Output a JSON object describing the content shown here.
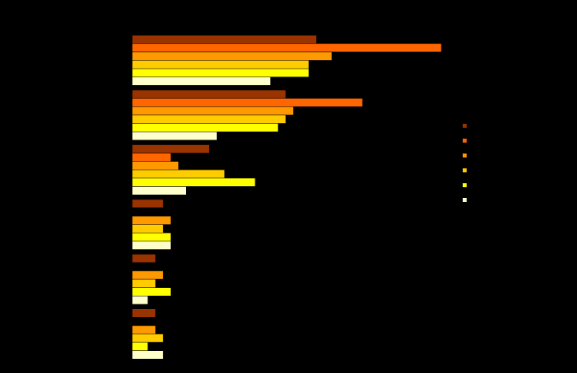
{
  "chart_data": {
    "type": "bar",
    "orientation": "horizontal",
    "title": "",
    "xlabel": "",
    "ylabel": "",
    "xlim": [
      0,
      40
    ],
    "grid": false,
    "legend_position": "right",
    "categories": [
      "",
      "",
      "",
      "",
      "",
      ""
    ],
    "series": [
      {
        "color": "#993300",
        "values": [
          24,
          20,
          10,
          4,
          3,
          3
        ]
      },
      {
        "color": "#FF6600",
        "values": [
          40.3,
          30,
          5,
          0,
          0,
          0
        ]
      },
      {
        "color": "#FF9900",
        "values": [
          26,
          21,
          6,
          5,
          4,
          3
        ]
      },
      {
        "color": "#FFCC00",
        "values": [
          23,
          20,
          12,
          4,
          3,
          4
        ]
      },
      {
        "color": "#FFFF00",
        "values": [
          23,
          19,
          16,
          5,
          5,
          2
        ]
      },
      {
        "color": "#FFFFCC",
        "values": [
          18,
          11,
          7,
          5,
          2,
          4
        ]
      }
    ]
  }
}
